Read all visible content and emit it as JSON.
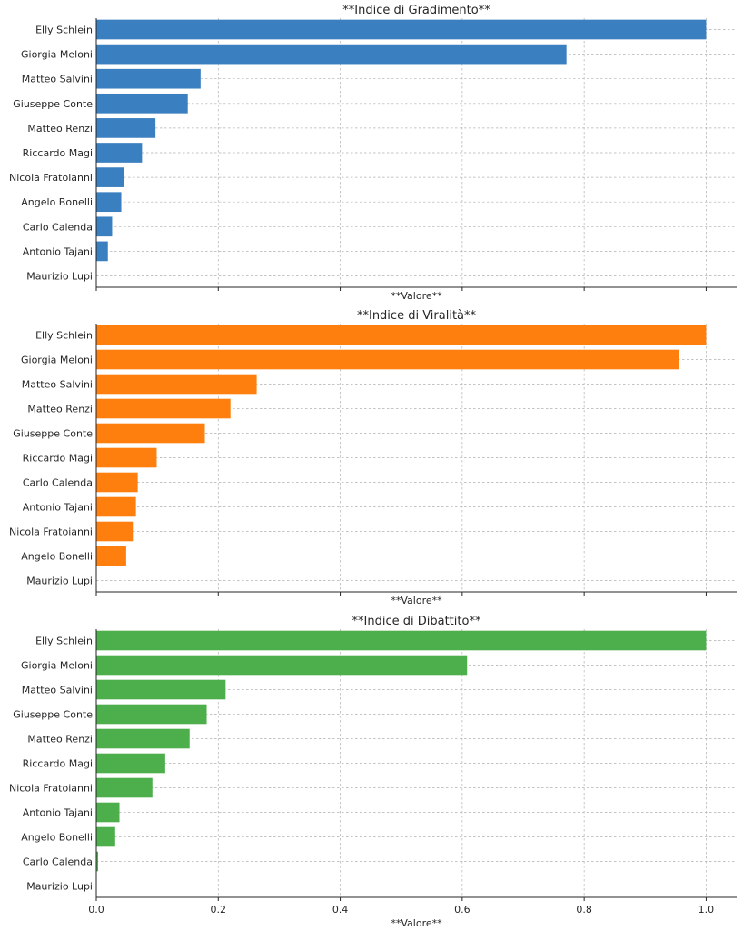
{
  "chart_data": [
    {
      "type": "bar",
      "orientation": "horizontal",
      "title": "**Indice di Gradimento**",
      "xlabel": "**Valore**",
      "color": "#3a7fbf",
      "xlim": [
        0,
        1.05
      ],
      "xticks": [
        "0.0",
        "0.2",
        "0.4",
        "0.6",
        "0.8",
        "1.0"
      ],
      "show_xtick_labels": false,
      "grid": true,
      "categories": [
        "Elly Schlein",
        "Giorgia Meloni",
        "Matteo Salvini",
        "Giuseppe Conte",
        "Matteo Renzi",
        "Riccardo Magi",
        "Nicola Fratoianni",
        "Angelo Bonelli",
        "Carlo Calenda",
        "Antonio Tajani",
        "Maurizio Lupi"
      ],
      "values": [
        1.0,
        0.771,
        0.171,
        0.15,
        0.097,
        0.075,
        0.046,
        0.041,
        0.026,
        0.019,
        0.0
      ]
    },
    {
      "type": "bar",
      "orientation": "horizontal",
      "title": "**Indice di Viralità**",
      "xlabel": "**Valore**",
      "color": "#ff7f0e",
      "xlim": [
        0,
        1.05
      ],
      "xticks": [
        "0.0",
        "0.2",
        "0.4",
        "0.6",
        "0.8",
        "1.0"
      ],
      "show_xtick_labels": false,
      "grid": true,
      "categories": [
        "Elly Schlein",
        "Giorgia Meloni",
        "Matteo Salvini",
        "Matteo Renzi",
        "Giuseppe Conte",
        "Riccardo Magi",
        "Carlo Calenda",
        "Antonio Tajani",
        "Nicola Fratoianni",
        "Angelo Bonelli",
        "Maurizio Lupi"
      ],
      "values": [
        1.0,
        0.955,
        0.263,
        0.22,
        0.178,
        0.099,
        0.068,
        0.065,
        0.06,
        0.049,
        0.0
      ]
    },
    {
      "type": "bar",
      "orientation": "horizontal",
      "title": "**Indice di Dibattito**",
      "xlabel": "**Valore**",
      "color": "#4caf4c",
      "xlim": [
        0,
        1.05
      ],
      "xticks": [
        "0.0",
        "0.2",
        "0.4",
        "0.6",
        "0.8",
        "1.0"
      ],
      "show_xtick_labels": true,
      "grid": true,
      "categories": [
        "Elly Schlein",
        "Giorgia Meloni",
        "Matteo Salvini",
        "Giuseppe Conte",
        "Matteo Renzi",
        "Riccardo Magi",
        "Nicola Fratoianni",
        "Antonio Tajani",
        "Angelo Bonelli",
        "Carlo Calenda",
        "Maurizio Lupi"
      ],
      "values": [
        1.0,
        0.608,
        0.212,
        0.181,
        0.153,
        0.113,
        0.092,
        0.038,
        0.031,
        0.003,
        0.0
      ]
    }
  ]
}
